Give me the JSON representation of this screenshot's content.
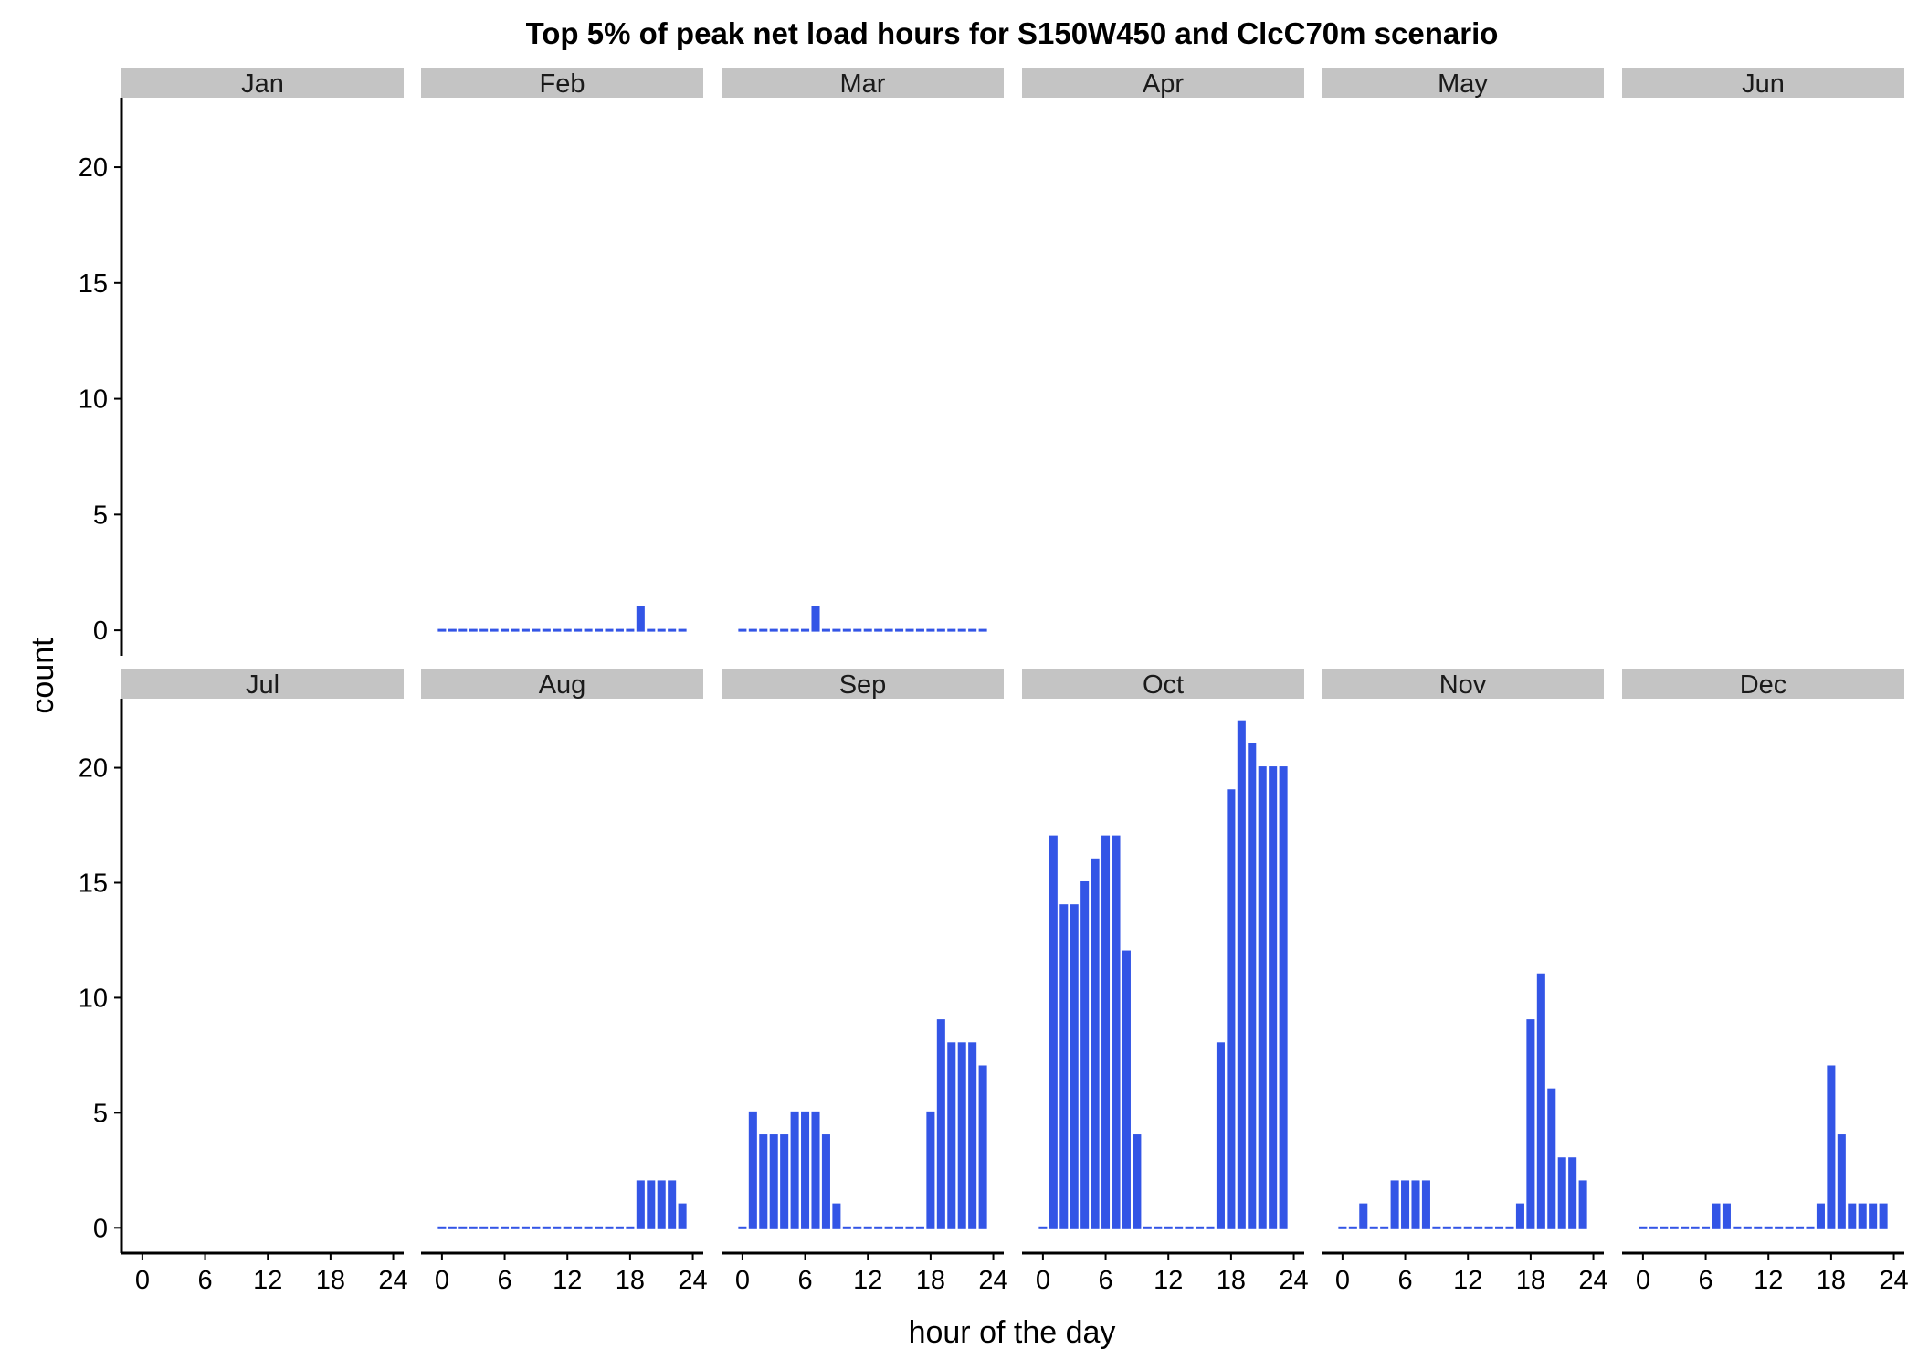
{
  "chart_data": {
    "type": "bar",
    "title": "Top 5% of peak net load hours for S150W450 and ClcC70m scenario",
    "xlabel": "hour of the day",
    "ylabel": "count",
    "x_ticks": [
      0,
      6,
      12,
      18,
      24
    ],
    "y_ticks": [
      0,
      5,
      10,
      15,
      20
    ],
    "xlim": [
      -2,
      25
    ],
    "ylim": [
      -1.1,
      23
    ],
    "bar_color": "#3355e6",
    "strip_color": "#c4c4c4",
    "facets": [
      {
        "month": "Jan",
        "hours": [],
        "counts": []
      },
      {
        "month": "Feb",
        "hours": [
          0,
          1,
          2,
          3,
          4,
          5,
          6,
          7,
          8,
          9,
          10,
          11,
          12,
          13,
          14,
          15,
          16,
          17,
          18,
          19,
          20,
          21,
          22,
          23
        ],
        "counts": [
          0,
          0,
          0,
          0,
          0,
          0,
          0,
          0,
          0,
          0,
          0,
          0,
          0,
          0,
          0,
          0,
          0,
          0,
          0,
          1,
          0,
          0,
          0,
          0
        ]
      },
      {
        "month": "Mar",
        "hours": [
          0,
          1,
          2,
          3,
          4,
          5,
          6,
          7,
          8,
          9,
          10,
          11,
          12,
          13,
          14,
          15,
          16,
          17,
          18,
          19,
          20,
          21,
          22,
          23
        ],
        "counts": [
          0,
          0,
          0,
          0,
          0,
          0,
          0,
          1,
          0,
          0,
          0,
          0,
          0,
          0,
          0,
          0,
          0,
          0,
          0,
          0,
          0,
          0,
          0,
          0
        ]
      },
      {
        "month": "Apr",
        "hours": [],
        "counts": []
      },
      {
        "month": "May",
        "hours": [],
        "counts": []
      },
      {
        "month": "Jun",
        "hours": [],
        "counts": []
      },
      {
        "month": "Jul",
        "hours": [],
        "counts": []
      },
      {
        "month": "Aug",
        "hours": [
          0,
          1,
          2,
          3,
          4,
          5,
          6,
          7,
          8,
          9,
          10,
          11,
          12,
          13,
          14,
          15,
          16,
          17,
          18,
          19,
          20,
          21,
          22,
          23
        ],
        "counts": [
          0,
          0,
          0,
          0,
          0,
          0,
          0,
          0,
          0,
          0,
          0,
          0,
          0,
          0,
          0,
          0,
          0,
          0,
          0,
          2,
          2,
          2,
          2,
          1
        ]
      },
      {
        "month": "Sep",
        "hours": [
          0,
          1,
          2,
          3,
          4,
          5,
          6,
          7,
          8,
          9,
          10,
          11,
          12,
          13,
          14,
          15,
          16,
          17,
          18,
          19,
          20,
          21,
          22,
          23
        ],
        "counts": [
          0,
          5,
          4,
          4,
          4,
          5,
          5,
          5,
          4,
          1,
          0,
          0,
          0,
          0,
          0,
          0,
          0,
          0,
          5,
          9,
          8,
          8,
          8,
          7
        ]
      },
      {
        "month": "Oct",
        "hours": [
          0,
          1,
          2,
          3,
          4,
          5,
          6,
          7,
          8,
          9,
          10,
          11,
          12,
          13,
          14,
          15,
          16,
          17,
          18,
          19,
          20,
          21,
          22,
          23
        ],
        "counts": [
          0,
          17,
          14,
          14,
          15,
          16,
          17,
          17,
          12,
          4,
          0,
          0,
          0,
          0,
          0,
          0,
          0,
          8,
          19,
          22,
          21,
          20,
          20,
          20
        ]
      },
      {
        "month": "Nov",
        "hours": [
          0,
          1,
          2,
          3,
          4,
          5,
          6,
          7,
          8,
          9,
          10,
          11,
          12,
          13,
          14,
          15,
          16,
          17,
          18,
          19,
          20,
          21,
          22,
          23
        ],
        "counts": [
          0,
          0,
          1,
          0,
          0,
          2,
          2,
          2,
          2,
          0,
          0,
          0,
          0,
          0,
          0,
          0,
          0,
          1,
          9,
          11,
          6,
          3,
          3,
          2
        ]
      },
      {
        "month": "Dec",
        "hours": [
          0,
          1,
          2,
          3,
          4,
          5,
          6,
          7,
          8,
          9,
          10,
          11,
          12,
          13,
          14,
          15,
          16,
          17,
          18,
          19,
          20,
          21,
          22,
          23
        ],
        "counts": [
          0,
          0,
          0,
          0,
          0,
          0,
          0,
          1,
          1,
          0,
          0,
          0,
          0,
          0,
          0,
          0,
          0,
          1,
          7,
          4,
          1,
          1,
          1,
          1
        ]
      }
    ]
  }
}
